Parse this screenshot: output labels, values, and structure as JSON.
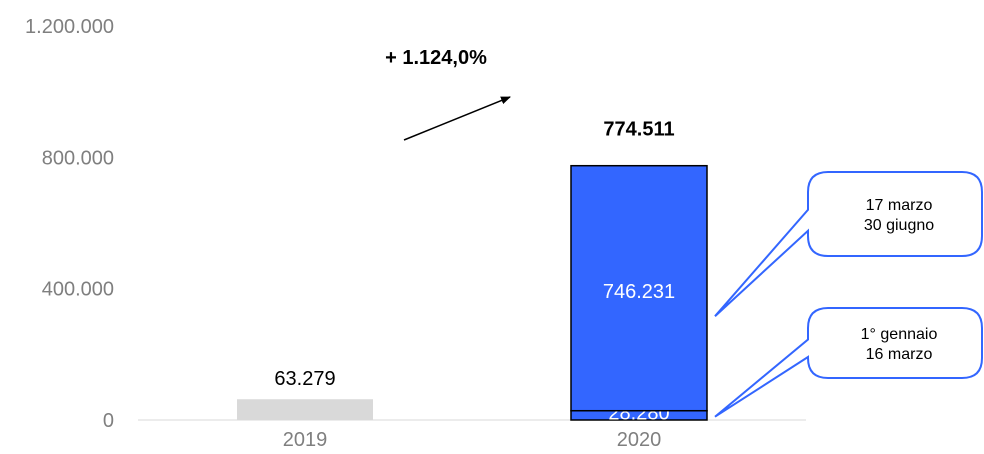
{
  "chart_data": {
    "type": "bar",
    "categories": [
      "2019",
      "2020"
    ],
    "ylim": [
      0,
      1200000
    ],
    "yticks": [
      0,
      400000,
      800000,
      1200000
    ],
    "ytick_labels": [
      "0",
      "400.000",
      "800.000",
      "1.200.000"
    ],
    "grid": false,
    "bars": [
      {
        "category": "2019",
        "total": 63279,
        "total_label": "63.279",
        "segments": [
          {
            "value": 63279,
            "color": "#d9d9d9"
          }
        ]
      },
      {
        "category": "2020",
        "total": 774511,
        "total_label": "774.511",
        "segments": [
          {
            "value": 28280,
            "label": "28.280",
            "color": "#3366ff",
            "callout": [
              "1° gennaio",
              "16 marzo"
            ]
          },
          {
            "value": 746231,
            "label": "746.231",
            "color": "#3366ff",
            "callout": [
              "17 marzo",
              "30 giugno"
            ]
          }
        ]
      }
    ],
    "growth_annotation": "+ 1.124,0%",
    "colors": {
      "bar_2019": "#d9d9d9",
      "bar_2020": "#3366ff",
      "callout_border": "#3366ff",
      "axis_text": "#7f7f7f"
    }
  }
}
